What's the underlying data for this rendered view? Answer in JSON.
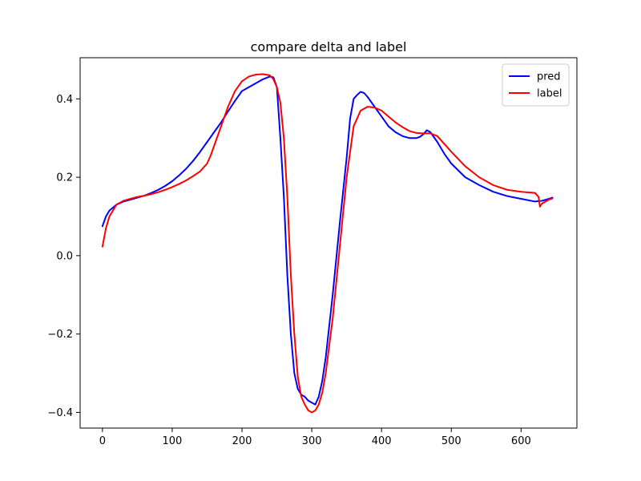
{
  "chart_data": {
    "type": "line",
    "title": "compare delta and label",
    "xlabel": "",
    "ylabel": "",
    "xlim": [
      -32,
      680
    ],
    "ylim": [
      -0.44,
      0.505
    ],
    "xticks": [
      0,
      100,
      200,
      300,
      400,
      500,
      600
    ],
    "xtick_labels": [
      "0",
      "100",
      "200",
      "300",
      "400",
      "500",
      "600"
    ],
    "yticks": [
      -0.4,
      -0.2,
      0.0,
      0.2,
      0.4
    ],
    "ytick_labels": [
      "−0.4",
      "−0.2",
      "0.0",
      "0.2",
      "0.4"
    ],
    "grid": false,
    "legend_position": "top-right",
    "series": [
      {
        "name": "pred",
        "color": "#0000ff",
        "x": [
          0,
          5,
          10,
          20,
          30,
          40,
          50,
          60,
          70,
          80,
          90,
          100,
          110,
          120,
          130,
          140,
          150,
          160,
          170,
          180,
          190,
          200,
          210,
          220,
          230,
          240,
          245,
          250,
          255,
          260,
          265,
          270,
          275,
          280,
          285,
          290,
          295,
          300,
          305,
          310,
          315,
          320,
          330,
          340,
          350,
          355,
          360,
          365,
          370,
          375,
          380,
          390,
          400,
          410,
          420,
          430,
          440,
          450,
          455,
          460,
          465,
          470,
          480,
          490,
          500,
          520,
          540,
          560,
          580,
          600,
          620,
          630,
          640,
          645
        ],
        "y": [
          0.075,
          0.1,
          0.115,
          0.13,
          0.138,
          0.143,
          0.148,
          0.153,
          0.16,
          0.168,
          0.178,
          0.19,
          0.205,
          0.222,
          0.242,
          0.265,
          0.29,
          0.315,
          0.34,
          0.368,
          0.395,
          0.42,
          0.43,
          0.44,
          0.45,
          0.457,
          0.455,
          0.43,
          0.3,
          0.15,
          -0.05,
          -0.2,
          -0.3,
          -0.34,
          -0.355,
          -0.36,
          -0.37,
          -0.375,
          -0.38,
          -0.36,
          -0.32,
          -0.26,
          -0.1,
          0.08,
          0.25,
          0.35,
          0.4,
          0.41,
          0.418,
          0.415,
          0.405,
          0.38,
          0.355,
          0.33,
          0.315,
          0.305,
          0.3,
          0.3,
          0.303,
          0.31,
          0.32,
          0.315,
          0.29,
          0.26,
          0.235,
          0.2,
          0.18,
          0.163,
          0.152,
          0.145,
          0.138,
          0.14,
          0.145,
          0.148
        ]
      },
      {
        "name": "label",
        "color": "#ff0000",
        "x": [
          0,
          5,
          10,
          20,
          30,
          40,
          50,
          60,
          70,
          80,
          90,
          100,
          110,
          120,
          130,
          140,
          150,
          155,
          160,
          170,
          180,
          190,
          200,
          210,
          220,
          230,
          240,
          245,
          250,
          255,
          260,
          265,
          270,
          275,
          280,
          285,
          290,
          295,
          300,
          305,
          310,
          315,
          320,
          330,
          340,
          350,
          360,
          370,
          380,
          390,
          400,
          410,
          420,
          430,
          440,
          450,
          460,
          470,
          480,
          490,
          500,
          520,
          540,
          560,
          580,
          600,
          620,
          625,
          627,
          630,
          640,
          645
        ],
        "y": [
          0.023,
          0.07,
          0.1,
          0.13,
          0.14,
          0.145,
          0.15,
          0.153,
          0.157,
          0.162,
          0.168,
          0.175,
          0.183,
          0.192,
          0.203,
          0.215,
          0.235,
          0.255,
          0.28,
          0.33,
          0.38,
          0.42,
          0.445,
          0.457,
          0.462,
          0.463,
          0.46,
          0.45,
          0.43,
          0.39,
          0.3,
          0.15,
          -0.05,
          -0.2,
          -0.31,
          -0.36,
          -0.38,
          -0.395,
          -0.4,
          -0.395,
          -0.38,
          -0.35,
          -0.3,
          -0.16,
          0.02,
          0.2,
          0.33,
          0.37,
          0.38,
          0.378,
          0.37,
          0.355,
          0.34,
          0.328,
          0.318,
          0.313,
          0.312,
          0.312,
          0.305,
          0.285,
          0.265,
          0.228,
          0.2,
          0.18,
          0.168,
          0.163,
          0.16,
          0.15,
          0.125,
          0.133,
          0.143,
          0.146
        ]
      }
    ]
  }
}
